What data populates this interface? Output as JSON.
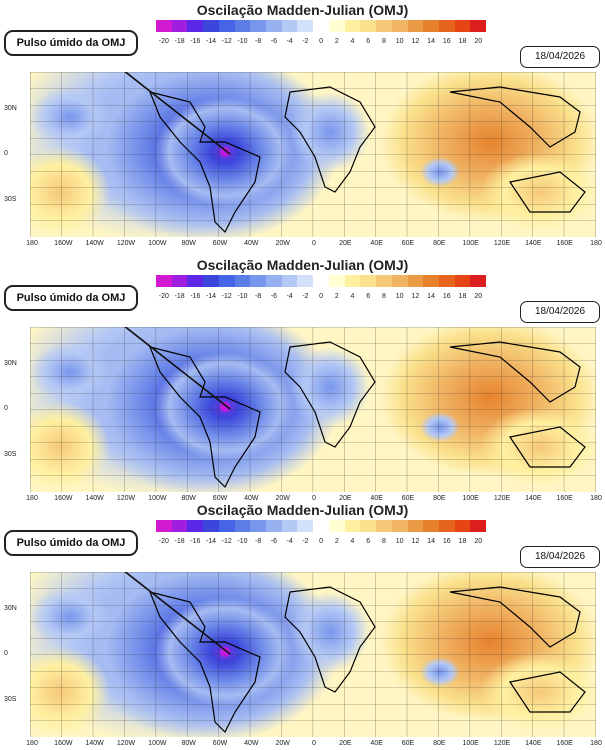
{
  "title": "Oscilação Madden-Julian (OMJ)",
  "callout_label": "Pulso úmido da OMJ",
  "date": "18/04/2026",
  "colorbar": {
    "labels": [
      "-20",
      "-18",
      "-16",
      "-14",
      "-12",
      "-10",
      "-8",
      "-6",
      "-4",
      "-2",
      "0",
      "2",
      "4",
      "6",
      "8",
      "10",
      "12",
      "14",
      "16",
      "18",
      "20"
    ],
    "colors": [
      "#d21ad2",
      "#a01ee0",
      "#5a28e6",
      "#3c46dc",
      "#4664e6",
      "#5a7ee6",
      "#7896ec",
      "#96b0f0",
      "#b4c8f5",
      "#d2e0fa",
      "#ffffff",
      "#ffffd2",
      "#fff0a0",
      "#fae18c",
      "#f5c878",
      "#f0b464",
      "#eb9b46",
      "#e6822d",
      "#e6641e",
      "#e64614",
      "#dc1e1e"
    ]
  },
  "lat_labels": [
    "30N",
    "0",
    "30S"
  ],
  "lon_labels": [
    "180",
    "160W",
    "140W",
    "120W",
    "100W",
    "80W",
    "60W",
    "40W",
    "20W",
    "0",
    "20E",
    "40E",
    "60E",
    "80E",
    "100E",
    "120E",
    "140E",
    "160E",
    "180"
  ]
}
